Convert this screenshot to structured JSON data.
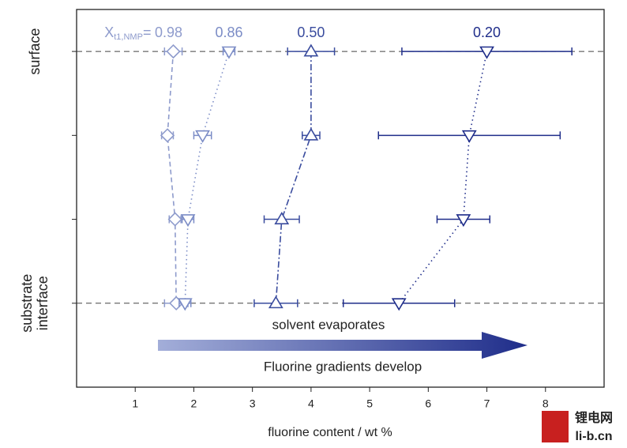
{
  "chart_data": {
    "type": "errorbar-profile",
    "x_label": "fluorine content / wt %",
    "categories": [
      "surface",
      null,
      null,
      "substrate interface"
    ],
    "xlim": [
      0,
      9
    ],
    "xticks": [
      1,
      2,
      3,
      4,
      5,
      6,
      7,
      8
    ],
    "legend_lead": {
      "main": "X",
      "sub": "t1,NMP",
      "sep": "="
    },
    "series": [
      {
        "name": "0.98",
        "color": "#8e9bcc",
        "marker": "diamond",
        "line": "dashed",
        "values": [
          1.65,
          1.55,
          1.68,
          1.7
        ],
        "errors": [
          0.15,
          0.1,
          0.1,
          0.2
        ]
      },
      {
        "name": "0.86",
        "color": "#7b8cc6",
        "marker": "triangle-down",
        "line": "dotted",
        "values": [
          2.6,
          2.15,
          1.9,
          1.85
        ],
        "errors": [
          0.1,
          0.15,
          0.1,
          0.1
        ]
      },
      {
        "name": "0.50",
        "color": "#3a4c9e",
        "marker": "triangle-up",
        "line": "dashdot",
        "values": [
          4.0,
          4.0,
          3.5,
          3.4
        ],
        "errors": [
          0.4,
          0.15,
          0.3,
          0.37
        ]
      },
      {
        "name": "0.20",
        "color": "#1f2d8a",
        "marker": "triangle-down",
        "line": "dotted",
        "values": [
          7.0,
          6.7,
          6.6,
          5.5
        ],
        "errors": [
          1.45,
          1.55,
          0.45,
          0.95
        ]
      }
    ],
    "annotations": [
      "solvent evaporates",
      "Fluorine gradients develop"
    ],
    "arrow_colors": [
      "#a3aed9",
      "#1f2d8a"
    ],
    "watermark": [
      "锂电网",
      "li-b.cn"
    ]
  }
}
